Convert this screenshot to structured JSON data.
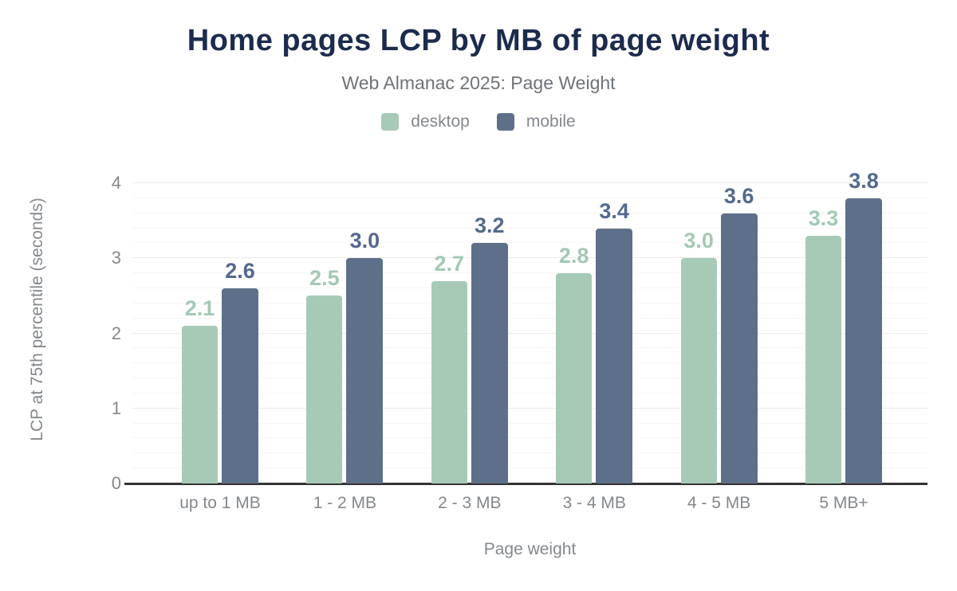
{
  "chart_data": {
    "type": "bar",
    "title": "Home pages LCP by MB of page weight",
    "subtitle": "Web Almanac 2025: Page Weight",
    "xlabel": "Page weight",
    "ylabel": "LCP at 75th percentile (seconds)",
    "categories": [
      "up to 1 MB",
      "1 - 2 MB",
      "2 - 3 MB",
      "3 - 4 MB",
      "4 - 5 MB",
      "5 MB+"
    ],
    "series": [
      {
        "name": "desktop",
        "color": "#a7cab7",
        "label_color": "#a4c8b4",
        "values": [
          2.1,
          2.5,
          2.7,
          2.8,
          3.0,
          3.3
        ]
      },
      {
        "name": "mobile",
        "color": "#5e7089",
        "label_color": "#54698e",
        "values": [
          2.6,
          3.0,
          3.2,
          3.4,
          3.6,
          3.8
        ]
      }
    ],
    "yticks": [
      0,
      1,
      2,
      3,
      4
    ],
    "ylim": [
      0,
      4.37
    ],
    "minor_grid_step": 0.2,
    "grid": true,
    "legend_position": "top",
    "value_labels": true,
    "value_label_format": "0.0",
    "colors": {
      "title": "#1c2b4d",
      "subtitle_text": "#6e7378",
      "muted_text": "#83888d",
      "axis_line": "#333333",
      "grid_major": "#ebebeb",
      "grid_minor": "#f6f6f6"
    }
  }
}
